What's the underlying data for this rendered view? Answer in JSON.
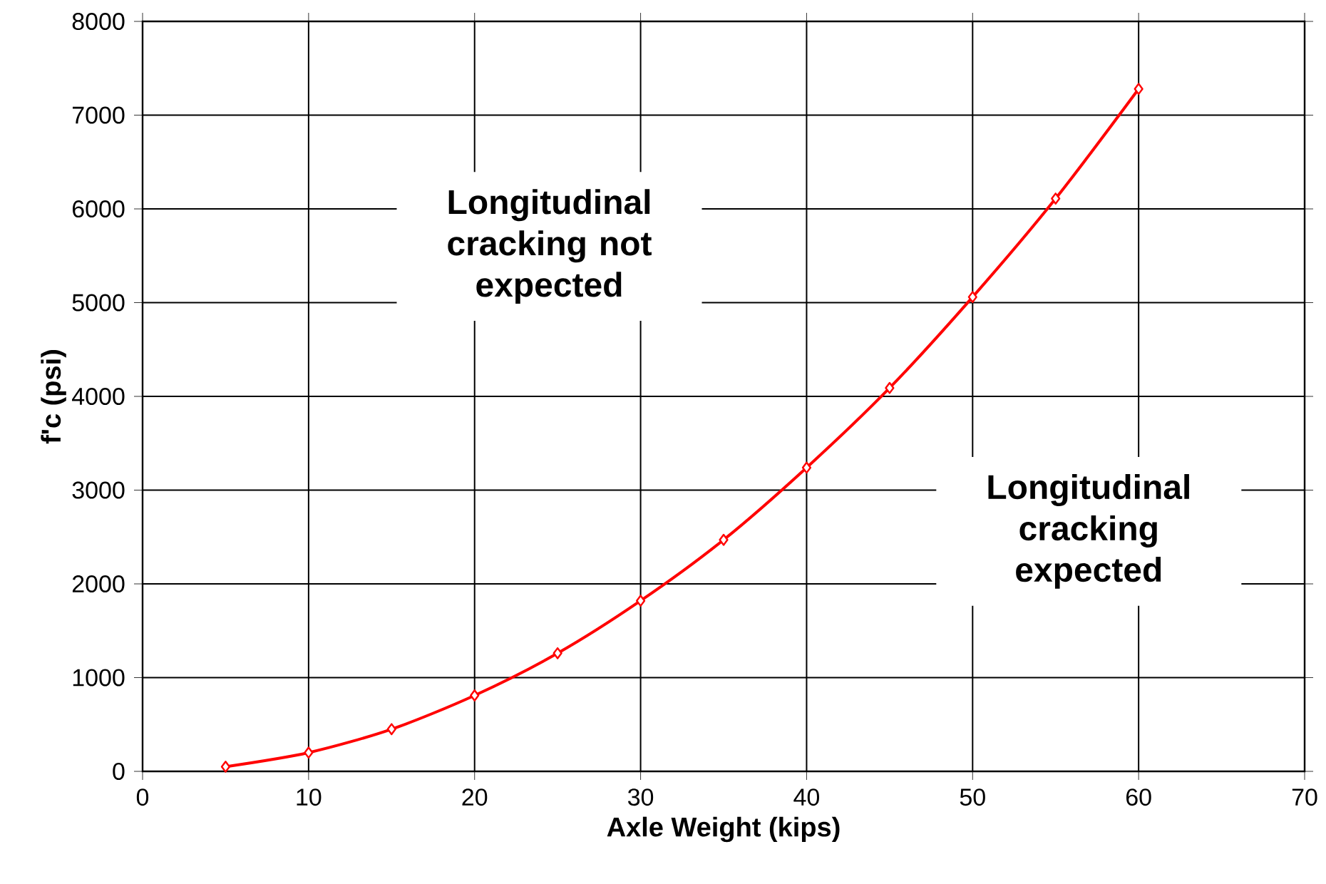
{
  "chart_data": {
    "type": "line",
    "xlabel": "Axle Weight (kips)",
    "ylabel": "f'c (psi)",
    "x": [
      5,
      10,
      15,
      20,
      25,
      30,
      35,
      40,
      45,
      50,
      55,
      60
    ],
    "series": [
      {
        "color": "#ff0000",
        "values": [
          50,
          200,
          450,
          810,
          1260,
          1820,
          2470,
          3240,
          4090,
          5060,
          6110,
          7280
        ]
      }
    ],
    "xlim": [
      0,
      70
    ],
    "ylim": [
      0,
      8000
    ],
    "xticks": [
      0,
      10,
      20,
      30,
      40,
      50,
      60,
      70
    ],
    "yticks": [
      0,
      1000,
      2000,
      3000,
      4000,
      5000,
      6000,
      7000,
      8000
    ],
    "grid": true,
    "marker": "diamond",
    "line_style": "solid",
    "annotations": [
      "Longitudinal cracking not expected",
      "Longitudinal cracking expected"
    ]
  }
}
